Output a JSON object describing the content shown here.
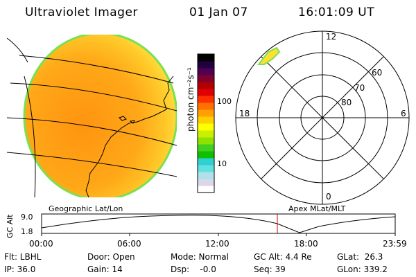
{
  "header": {
    "title": "Ultraviolet Imager",
    "date": "01 Jan 07",
    "time": "16:01:09 UT"
  },
  "colorbar": {
    "label": "photon cm⁻²s⁻¹",
    "ticks": [
      "100",
      "10"
    ],
    "colors": [
      "#ffffff",
      "#d8d8e8",
      "#b0e0e8",
      "#60e0e0",
      "#30d0d0",
      "#10c000",
      "#40d020",
      "#90e000",
      "#c8f000",
      "#ffff00",
      "#ffd000",
      "#ffa000",
      "#ff7000",
      "#ff3000",
      "#e00000",
      "#b00000",
      "#800030",
      "#500050",
      "#200040",
      "#000000"
    ]
  },
  "polar": {
    "mlt_labels": {
      "top": "12",
      "left": "18",
      "right": "6",
      "bottom": "0"
    },
    "lat_labels": [
      "60",
      "70",
      "80"
    ]
  },
  "altitude_plot": {
    "left_label": "Geographic Lat/Lon",
    "right_label": "Apex MLat/MLT",
    "axis_title": "GC Alt",
    "y_ticks": [
      "9.0",
      "1.8"
    ],
    "x_ticks": [
      "00:00",
      "06:00",
      "12:00",
      "18:00",
      "23:59"
    ],
    "marker_color": "#cc0000"
  },
  "status": {
    "filter": "Flt: LBHL",
    "ip": "IP: 36.0",
    "door": "Door: Open",
    "gain": "Gain: 14",
    "mode": "Mode: Normal",
    "dsp": "Dsp:    -0.0",
    "gc_alt": "GC Alt: 4.4 Re",
    "seq": "Seq: 39",
    "glat": "GLat:  26.3",
    "glon": "GLon: 339.2"
  }
}
